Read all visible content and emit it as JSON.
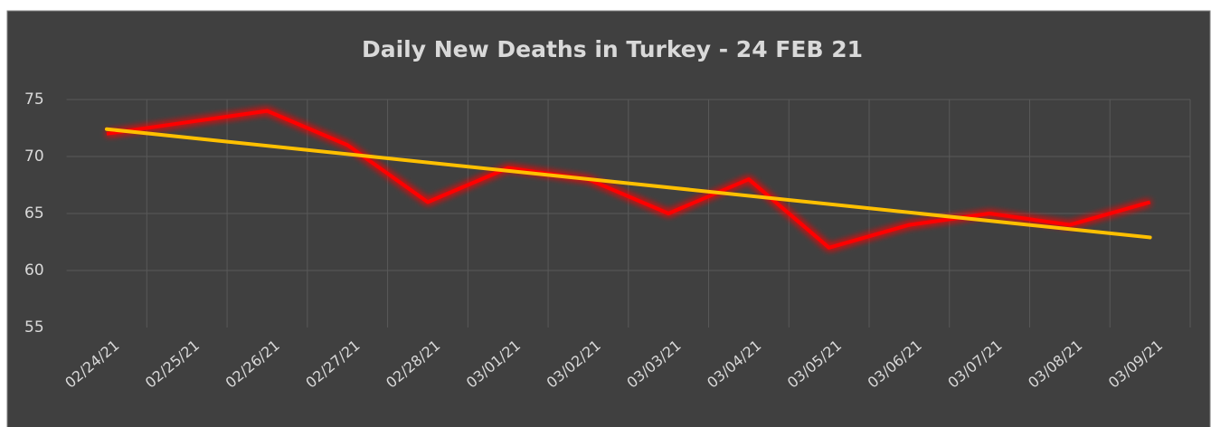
{
  "chart_data": {
    "type": "line",
    "title": "Daily New Deaths in Turkey - 24 FEB 21",
    "categories": [
      "02/24/21",
      "02/25/21",
      "02/26/21",
      "02/27/21",
      "02/28/21",
      "03/01/21",
      "03/02/21",
      "03/03/21",
      "03/04/21",
      "03/05/21",
      "03/06/21",
      "03/07/21",
      "03/08/21",
      "03/09/21"
    ],
    "series": [
      {
        "color": "#ff0000",
        "values": [
          72,
          73,
          74,
          71,
          66,
          69,
          68,
          65,
          68,
          62,
          64,
          65,
          64,
          66
        ]
      }
    ],
    "trendline": {
      "color": "#ffc000",
      "values": [
        72.4,
        62.9
      ]
    },
    "ylim": [
      55,
      75
    ],
    "yticks": [
      55,
      60,
      65,
      70,
      75
    ],
    "grid": true
  }
}
